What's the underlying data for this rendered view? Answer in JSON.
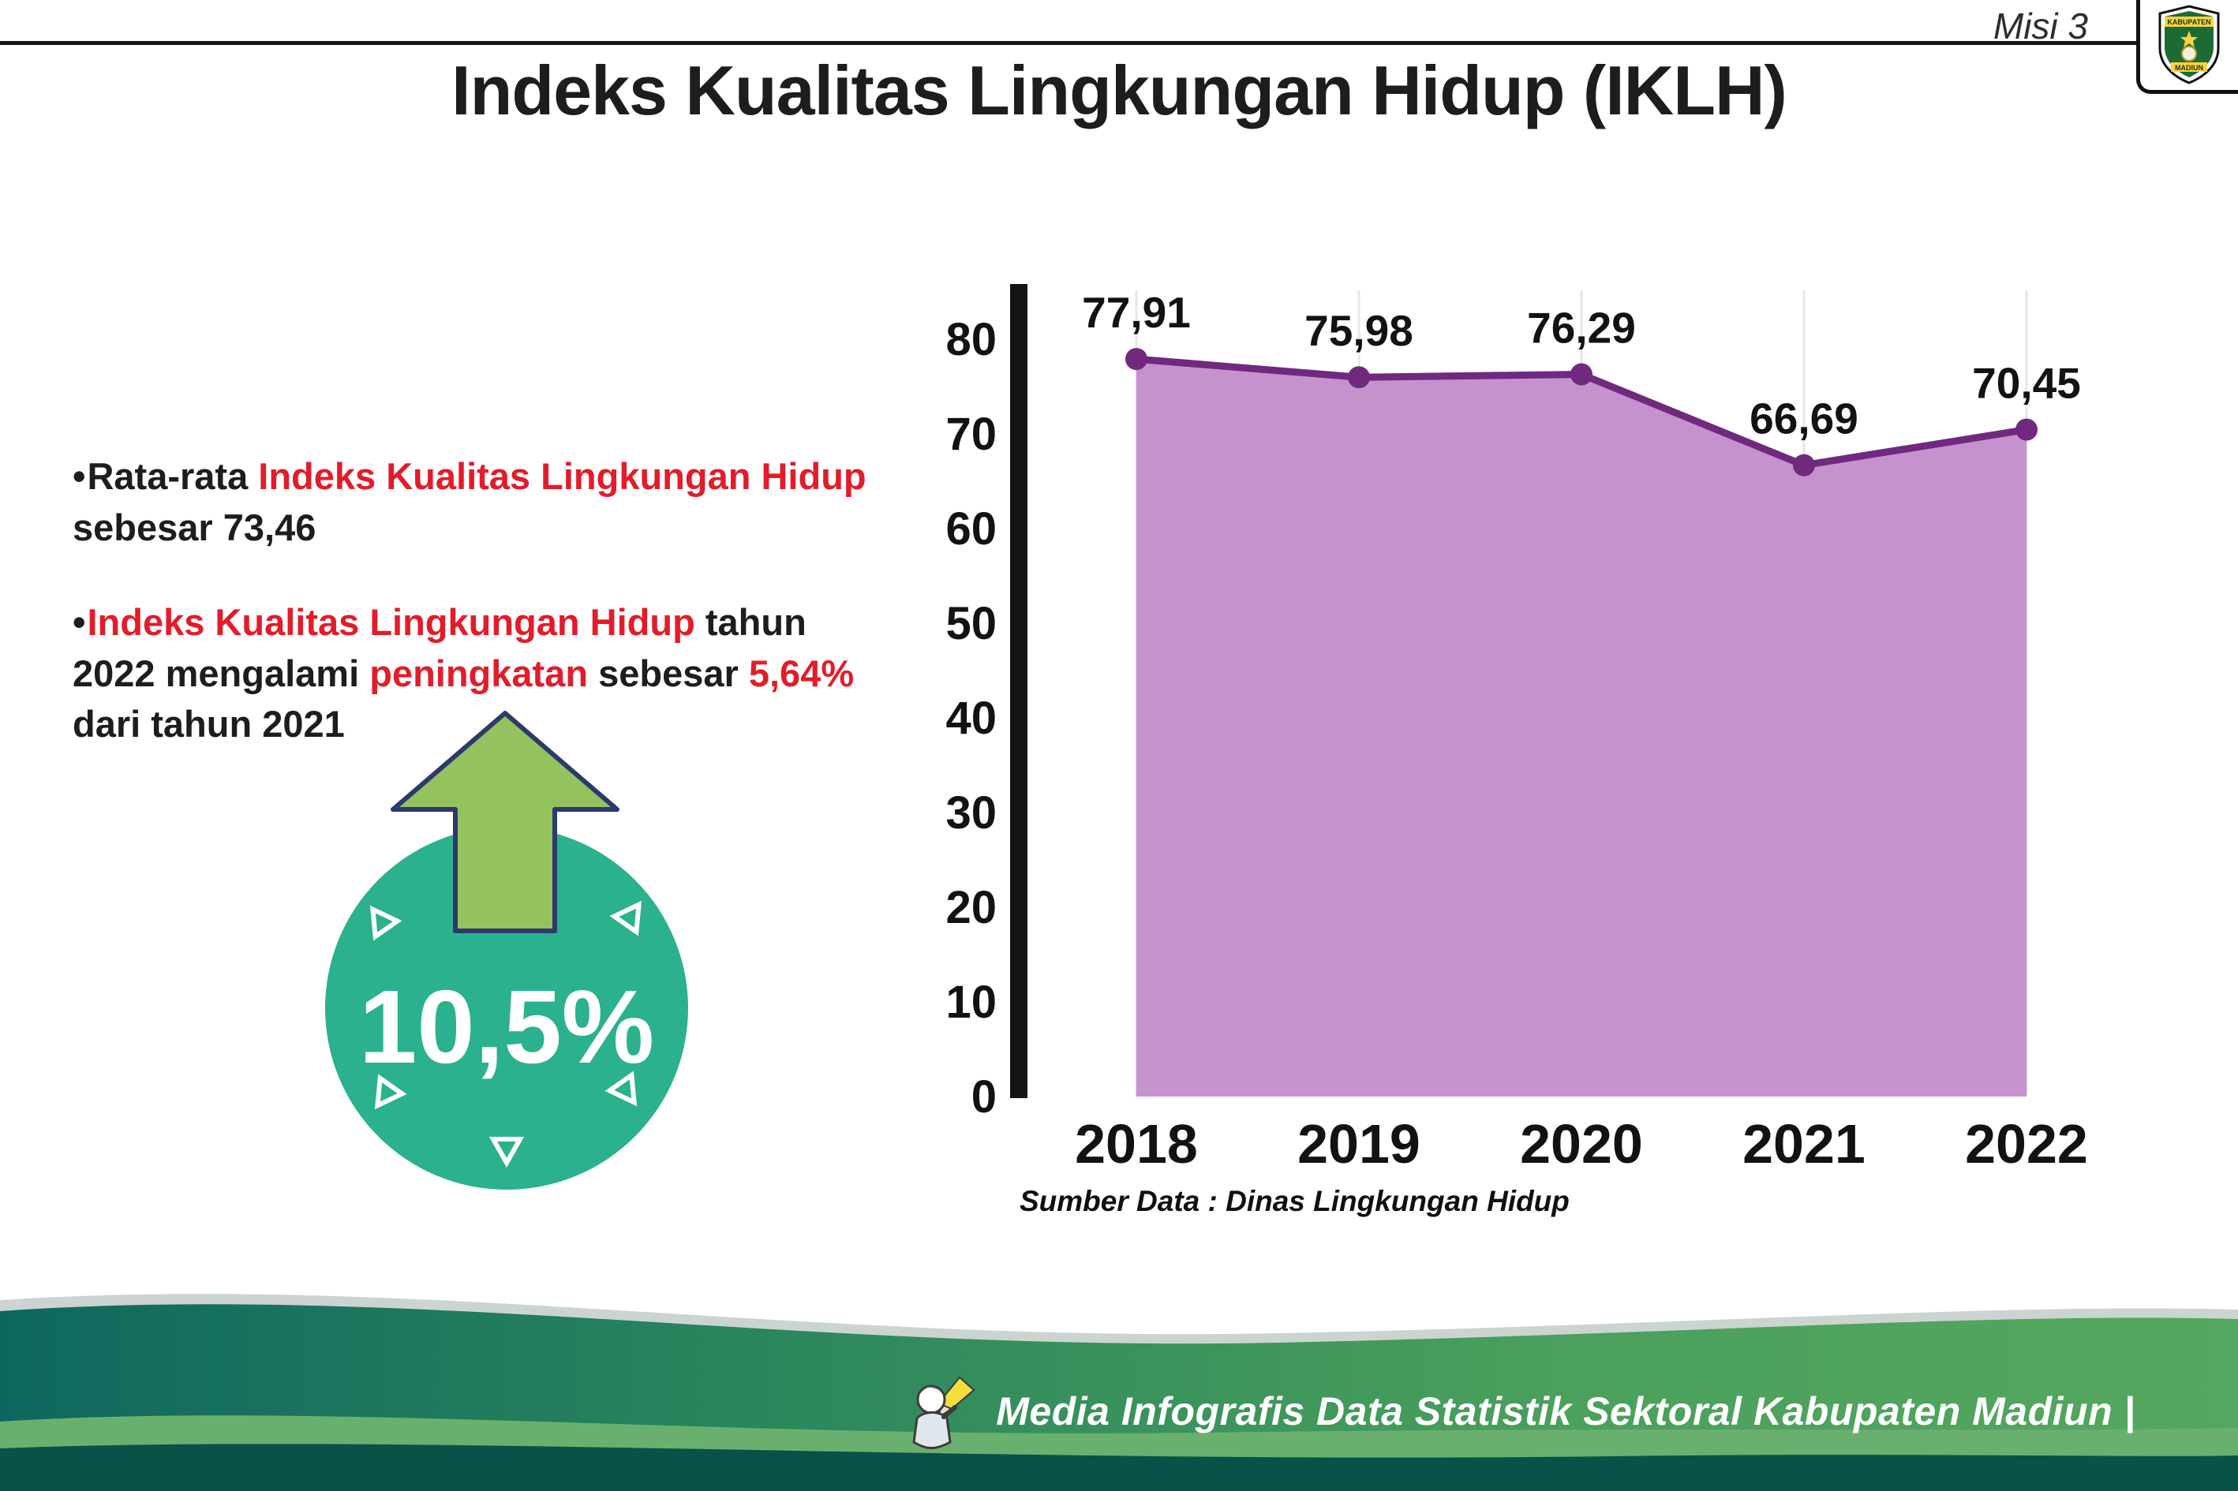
{
  "page": {
    "misi_label": "Misi 3",
    "title": "Indeks Kualitas Lingkungan Hidup (IKLH)"
  },
  "logo": {
    "top_text": "KABUPATEN",
    "bottom_text": "MADIUN"
  },
  "bullets": [
    {
      "marker": "•",
      "segments": [
        {
          "text": "Rata-rata ",
          "style": "dark"
        },
        {
          "text": "Indeks Kualitas Lingkungan Hidup",
          "style": "red"
        },
        {
          "text": " sebesar 73,46",
          "style": "dark"
        }
      ]
    },
    {
      "marker": "•",
      "segments": [
        {
          "text": "Indeks Kualitas Lingkungan Hidup",
          "style": "red"
        },
        {
          "text": " tahun 2022 mengalami ",
          "style": "dark"
        },
        {
          "text": "peningkatan",
          "style": "red"
        },
        {
          "text": " sebesar ",
          "style": "dark"
        },
        {
          "text": "5,64%",
          "style": "red"
        },
        {
          "text": " dari tahun 2021",
          "style": "dark"
        }
      ]
    }
  ],
  "increase_badge": {
    "value": "10,5%",
    "circle_color": "#2bb18e",
    "arrow_color": "#94c25f"
  },
  "chart_data": {
    "type": "area",
    "title": "Indeks Kualitas Lingkungan Hidup (IKLH)",
    "categories": [
      "2018",
      "2019",
      "2020",
      "2021",
      "2022"
    ],
    "values": [
      77.91,
      75.98,
      76.29,
      66.69,
      70.45
    ],
    "value_labels": [
      "77,91",
      "75,98",
      "76,29",
      "66,69",
      "70,45"
    ],
    "yticks": [
      0,
      10,
      20,
      30,
      40,
      50,
      60,
      70,
      80
    ],
    "ylim": [
      0,
      80
    ],
    "xlabel": "",
    "ylabel": "",
    "legend": "none",
    "grid": "vertical-light",
    "fill_color": "#c592ce",
    "line_color": "#70297f",
    "source": "Sumber Data : Dinas Lingkungan Hidup"
  },
  "footer": {
    "text": "Media Infografis Data Statistik Sektoral Kabupaten Madiun |"
  }
}
